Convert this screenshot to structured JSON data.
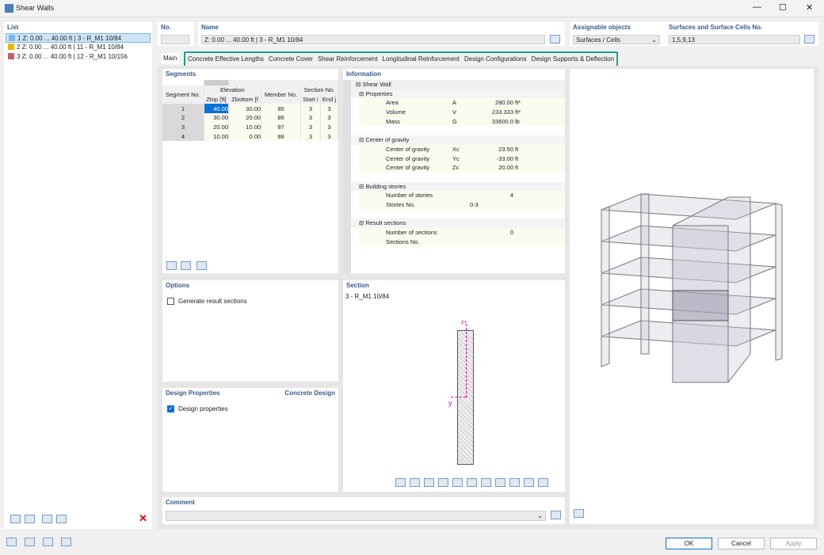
{
  "window": {
    "title": "Shear Walls"
  },
  "list": {
    "header": "List",
    "items": [
      {
        "label": "1 Z: 0.00 ... 40.00 ft | 3 - R_M1 10/84",
        "color": "#7ab8e8"
      },
      {
        "label": "2 Z: 0.00 ... 40.00 ft | 11 - R_M1 10/84",
        "color": "#f0b400"
      },
      {
        "label": "3 Z: 0.00 ... 40.00 ft | 12 - R_M1 10/156",
        "color": "#c0606a"
      }
    ]
  },
  "top": {
    "no_label": "No.",
    "no_value": "",
    "name_label": "Name",
    "name_value": "Z: 0.00 ... 40.00  ft | 3 - R_M1 10/84",
    "assignable_label": "Assignable objects",
    "assignable_value": "Surfaces / Cells",
    "surfaces_label": "Surfaces and Surface Cells No.",
    "surfaces_value": "1,5,9,13"
  },
  "tabs": [
    "Main",
    "Concrete Effective Lengths",
    "Concrete Cover",
    "Shear Reinforcement",
    "Longitudinal Reinforcement",
    "Design Configurations",
    "Design Supports & Deflection"
  ],
  "segments": {
    "header": "Segments",
    "col_segment": "Segment No.",
    "col_elevation": "Elevation",
    "col_ztop": "Ztop [ft]",
    "col_zbottom": "Zbottom [f",
    "col_member": "Member No.",
    "col_section": "Section No.",
    "col_start": "Start i",
    "col_end": "End j",
    "rows": [
      [
        "1",
        "40.00",
        "30.00",
        "85",
        "3",
        "3"
      ],
      [
        "2",
        "30.00",
        "20.00",
        "86",
        "3",
        "3"
      ],
      [
        "3",
        "20.00",
        "10.00",
        "87",
        "3",
        "3"
      ],
      [
        "4",
        "10.00",
        "0.00",
        "88",
        "3",
        "3"
      ]
    ]
  },
  "information": {
    "header": "Information",
    "root": "Shear Wall",
    "groups": [
      {
        "title": "Properties",
        "rows": [
          [
            "Area",
            "A",
            "280.00",
            "ft²"
          ],
          [
            "Volume",
            "V",
            "233.333",
            "ft³"
          ],
          [
            "Mass",
            "G",
            "33600.0",
            "lb"
          ]
        ]
      },
      {
        "title": "Center of gravity",
        "rows": [
          [
            "Center of gravity",
            "Xc",
            "23.50",
            "ft"
          ],
          [
            "Center of gravity",
            "Yc",
            "-33.00",
            "ft"
          ],
          [
            "Center of gravity",
            "Zc",
            "20.00",
            "ft"
          ]
        ]
      },
      {
        "title": "Building stories",
        "rows": [
          [
            "Number of stories",
            "",
            "4",
            ""
          ],
          [
            "Stories No.",
            "",
            "0-3",
            ""
          ]
        ]
      },
      {
        "title": "Result sections",
        "rows": [
          [
            "Number of sections",
            "",
            "0",
            ""
          ],
          [
            "Sections No.",
            "",
            "",
            ""
          ]
        ]
      }
    ]
  },
  "options": {
    "header": "Options",
    "generate_label": "Generate result sections",
    "generate_checked": false
  },
  "design": {
    "header": "Design Properties",
    "right": "Concrete Design",
    "label": "Design properties",
    "checked": true
  },
  "section": {
    "header": "Section",
    "name": "3 - R_M1 10/84",
    "z_label": "z+",
    "y_label": "y"
  },
  "comment": {
    "header": "Comment",
    "value": ""
  },
  "buttons": {
    "ok": "OK",
    "cancel": "Cancel",
    "apply": "Apply"
  },
  "colors": {
    "accent": "#1aa08a",
    "selection": "#0a6fd6"
  }
}
